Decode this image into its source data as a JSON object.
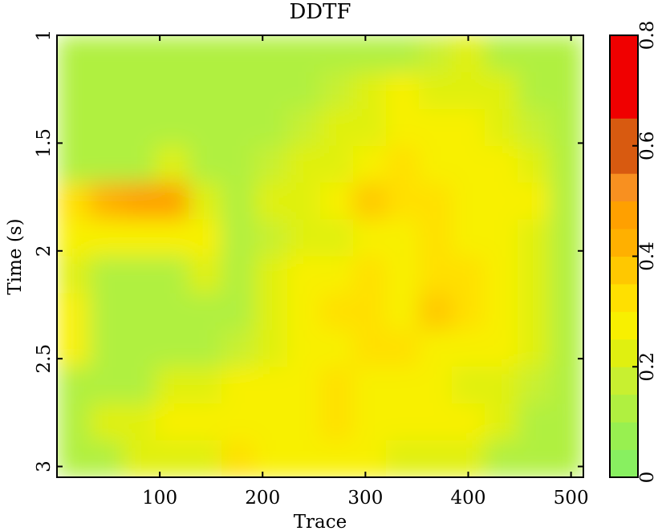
{
  "chart_data": {
    "type": "heatmap",
    "title": "DDTF",
    "x_label": "Trace",
    "y_label": "Time (s)",
    "xlim": [
      0,
      512
    ],
    "ylim": [
      1,
      3.05
    ],
    "xticks": [
      100,
      200,
      300,
      400,
      500
    ],
    "yticks": [
      1,
      1.5,
      2,
      2.5,
      3
    ],
    "y_inverted": true,
    "values": [
      [
        0.12,
        0.1,
        0.1,
        0.12,
        0.12,
        0.1,
        0.12,
        0.15,
        0.15,
        0.15,
        0.15,
        0.18,
        0.2,
        0.15,
        0.12,
        0.12
      ],
      [
        0.15,
        0.12,
        0.1,
        0.1,
        0.12,
        0.12,
        0.15,
        0.15,
        0.18,
        0.2,
        0.25,
        0.2,
        0.22,
        0.2,
        0.15,
        0.12
      ],
      [
        0.15,
        0.12,
        0.1,
        0.1,
        0.12,
        0.15,
        0.15,
        0.18,
        0.2,
        0.22,
        0.28,
        0.25,
        0.25,
        0.22,
        0.18,
        0.15
      ],
      [
        0.15,
        0.15,
        0.15,
        0.2,
        0.15,
        0.15,
        0.18,
        0.2,
        0.22,
        0.3,
        0.32,
        0.3,
        0.3,
        0.25,
        0.2,
        0.15
      ],
      [
        0.35,
        0.4,
        0.45,
        0.45,
        0.2,
        0.15,
        0.2,
        0.2,
        0.25,
        0.38,
        0.35,
        0.32,
        0.3,
        0.28,
        0.25,
        0.15
      ],
      [
        0.25,
        0.3,
        0.3,
        0.3,
        0.25,
        0.15,
        0.18,
        0.2,
        0.22,
        0.3,
        0.3,
        0.35,
        0.3,
        0.25,
        0.2,
        0.15
      ],
      [
        0.2,
        0.15,
        0.15,
        0.15,
        0.2,
        0.15,
        0.2,
        0.25,
        0.3,
        0.32,
        0.28,
        0.35,
        0.35,
        0.25,
        0.2,
        0.15
      ],
      [
        0.3,
        0.15,
        0.15,
        0.15,
        0.15,
        0.15,
        0.2,
        0.25,
        0.32,
        0.35,
        0.3,
        0.38,
        0.35,
        0.3,
        0.22,
        0.15
      ],
      [
        0.25,
        0.15,
        0.15,
        0.15,
        0.15,
        0.18,
        0.22,
        0.25,
        0.3,
        0.35,
        0.32,
        0.3,
        0.3,
        0.25,
        0.2,
        0.15
      ],
      [
        0.15,
        0.15,
        0.15,
        0.2,
        0.22,
        0.3,
        0.25,
        0.28,
        0.35,
        0.3,
        0.25,
        0.25,
        0.2,
        0.2,
        0.18,
        0.15
      ],
      [
        0.15,
        0.2,
        0.22,
        0.25,
        0.25,
        0.3,
        0.25,
        0.3,
        0.35,
        0.3,
        0.25,
        0.25,
        0.25,
        0.2,
        0.15,
        0.15
      ],
      [
        0.15,
        0.15,
        0.2,
        0.2,
        0.2,
        0.35,
        0.3,
        0.25,
        0.25,
        0.25,
        0.2,
        0.2,
        0.2,
        0.15,
        0.15,
        0.15
      ]
    ],
    "colorbar": {
      "lim": [
        0,
        0.8
      ],
      "ticks": [
        0,
        0.2,
        0.4,
        0.6,
        0.8
      ],
      "colors": [
        "#88f060",
        "#98f050",
        "#b0f040",
        "#c8f030",
        "#e0f010",
        "#f8f000",
        "#ffe000",
        "#ffc800",
        "#ffb000",
        "#ffa000",
        "#f89020",
        "#d85a10",
        "#d85a10",
        "#f00000",
        "#f00000",
        "#f00000"
      ]
    }
  }
}
